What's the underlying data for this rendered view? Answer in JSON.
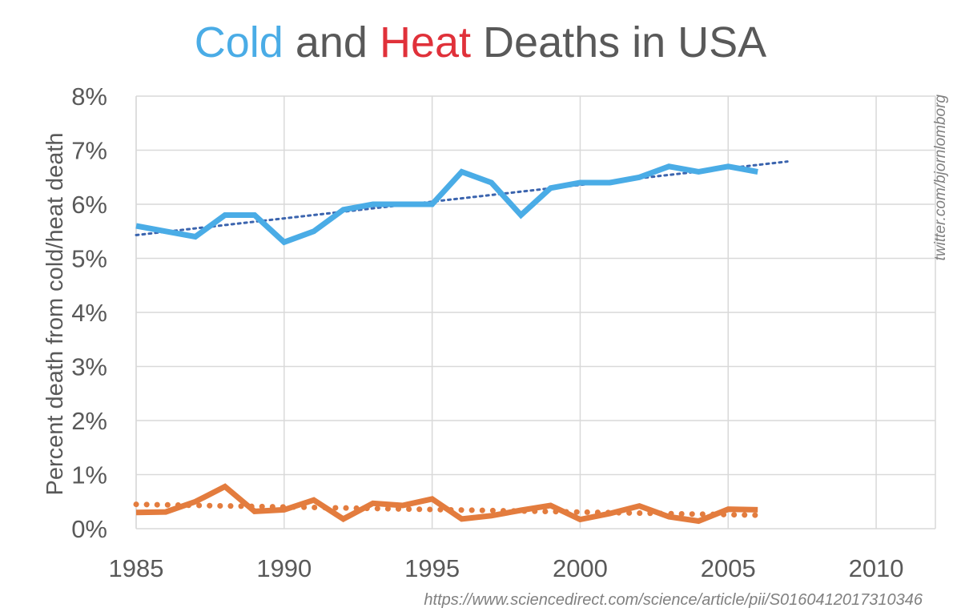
{
  "title": {
    "cold": "Cold",
    "and": " and ",
    "heat": "Heat",
    "rest": " Deaths in USA"
  },
  "colors": {
    "cold": "#4AACE6",
    "heat": "#E0313A",
    "heat_series": "#E37C3E",
    "cold_trend": "#3B64AE",
    "grid": "#d9d9d9",
    "text": "#595959"
  },
  "credit": "twitter.com/bjornlomborg",
  "source": "https://www.sciencedirect.com/science/article/pii/S0160412017310346",
  "chart_data": {
    "type": "line",
    "title": "Cold and Heat Deaths in USA",
    "xlabel": "",
    "ylabel": "Percent death from cold/heat death",
    "xlim": [
      1985,
      2012
    ],
    "ylim": [
      0,
      8
    ],
    "xticks": [
      1985,
      1990,
      1995,
      2000,
      2005,
      2010
    ],
    "yticks": [
      {
        "v": 0,
        "label": "0%"
      },
      {
        "v": 1,
        "label": "1%"
      },
      {
        "v": 2,
        "label": "2%"
      },
      {
        "v": 3,
        "label": "3%"
      },
      {
        "v": 4,
        "label": "4%"
      },
      {
        "v": 5,
        "label": "5%"
      },
      {
        "v": 6,
        "label": "6%"
      },
      {
        "v": 7,
        "label": "7%"
      },
      {
        "v": 8,
        "label": "8%"
      }
    ],
    "grid": true,
    "series": [
      {
        "name": "Cold",
        "color": "#4AACE6",
        "x": [
          1985,
          1986,
          1987,
          1988,
          1989,
          1990,
          1991,
          1992,
          1993,
          1994,
          1995,
          1996,
          1997,
          1998,
          1999,
          2000,
          2001,
          2002,
          2003,
          2004,
          2005,
          2006
        ],
        "values": [
          5.6,
          5.5,
          5.4,
          5.8,
          5.8,
          5.3,
          5.5,
          5.9,
          6.0,
          6.0,
          6.0,
          6.6,
          6.4,
          5.8,
          6.3,
          6.4,
          6.4,
          6.5,
          6.7,
          6.6,
          6.7,
          6.6
        ]
      },
      {
        "name": "Heat",
        "color": "#E37C3E",
        "x": [
          1985,
          1986,
          1987,
          1988,
          1989,
          1990,
          1991,
          1992,
          1993,
          1994,
          1995,
          1996,
          1997,
          1998,
          1999,
          2000,
          2001,
          2002,
          2003,
          2004,
          2005,
          2006
        ],
        "values": [
          0.3,
          0.31,
          0.5,
          0.78,
          0.32,
          0.35,
          0.53,
          0.18,
          0.47,
          0.43,
          0.55,
          0.18,
          0.24,
          0.34,
          0.43,
          0.17,
          0.28,
          0.42,
          0.22,
          0.14,
          0.36,
          0.35
        ]
      }
    ],
    "trendlines": [
      {
        "name": "Cold trend",
        "color": "#3B64AE",
        "style": "dotted-fine",
        "x": [
          1985,
          2007
        ],
        "y": [
          5.43,
          6.79
        ]
      },
      {
        "name": "Heat trend",
        "color": "#E37C3E",
        "style": "dotted-bold",
        "x": [
          1985,
          2006
        ],
        "y": [
          0.45,
          0.25
        ]
      }
    ]
  }
}
